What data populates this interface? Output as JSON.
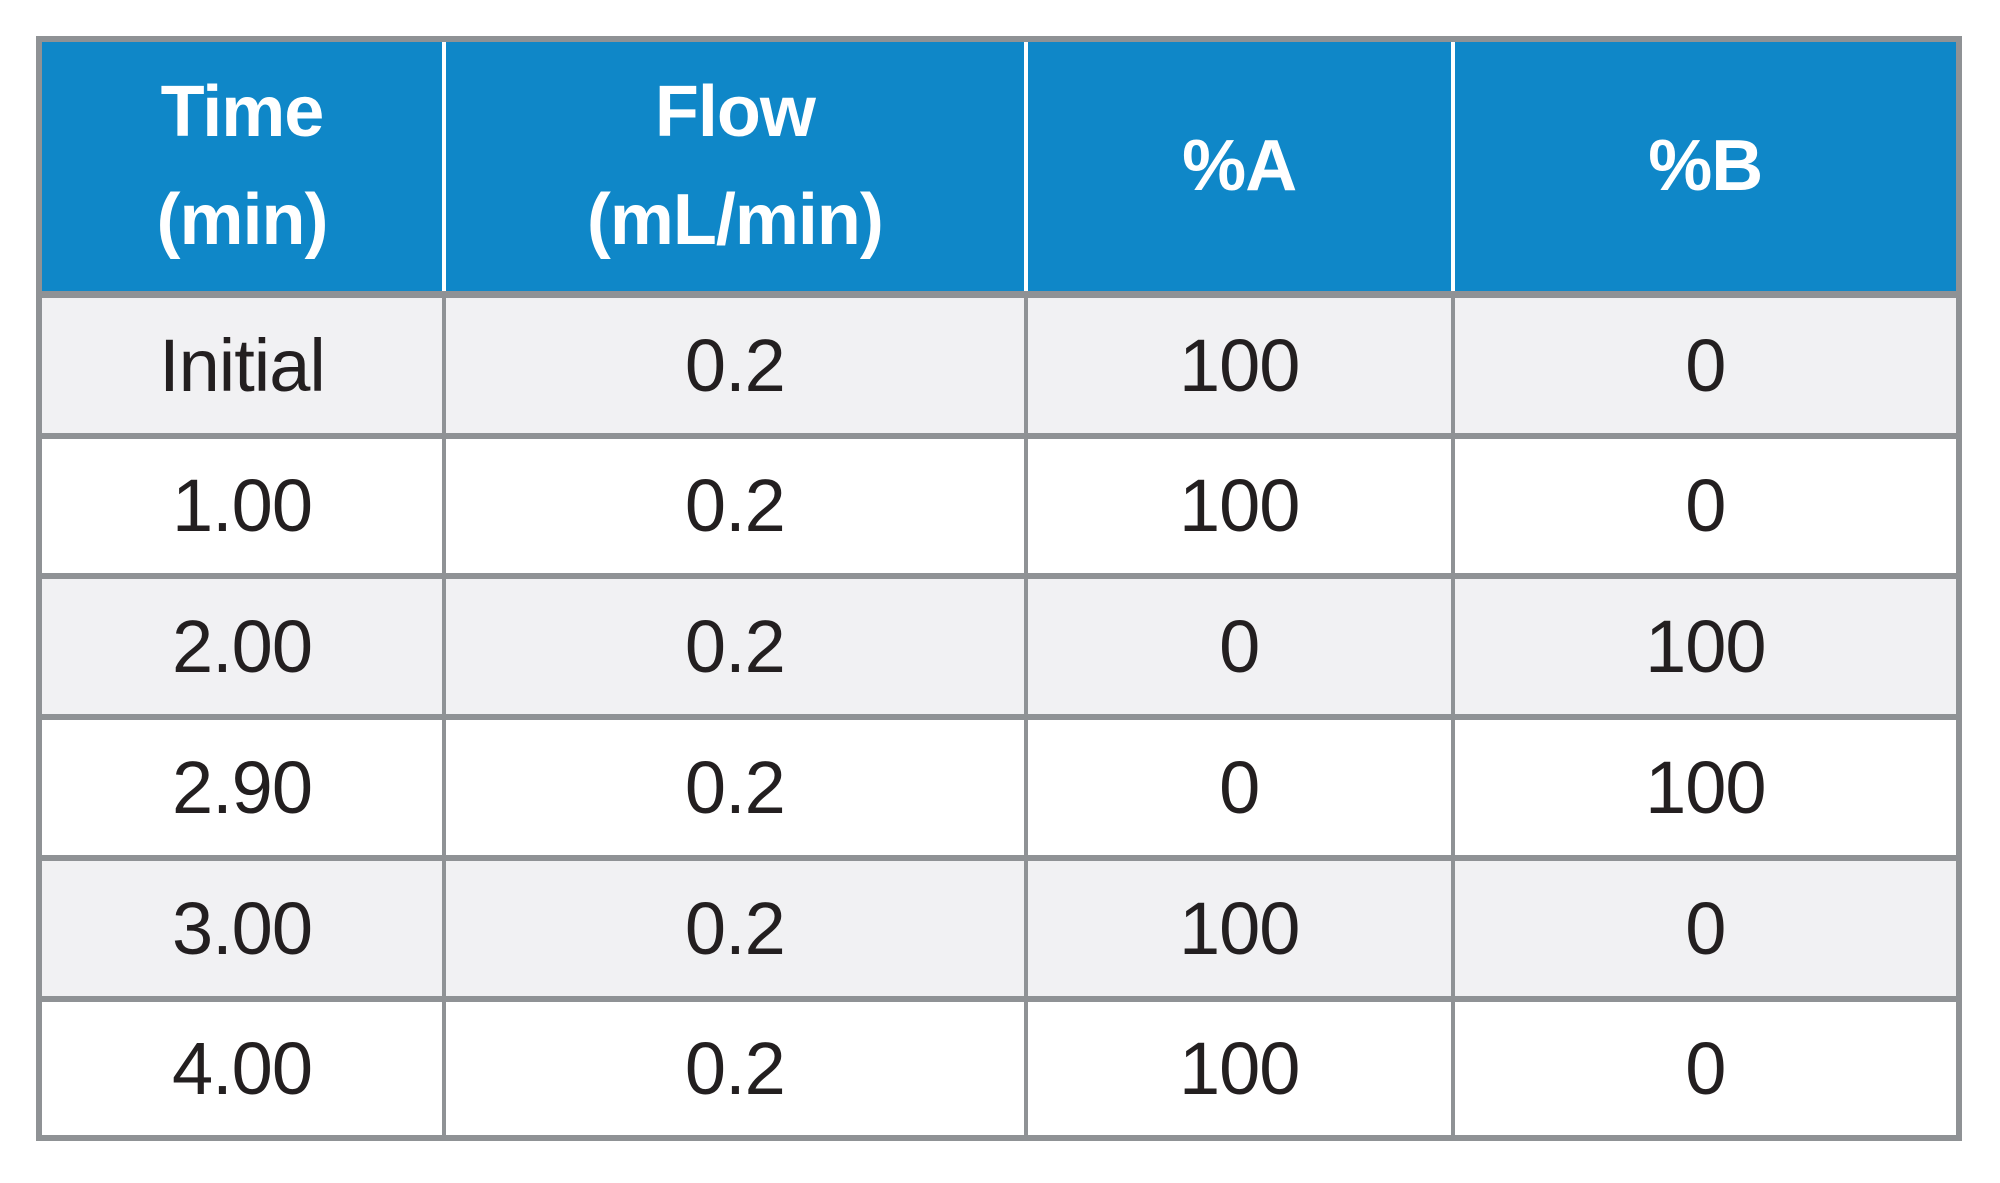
{
  "table": {
    "columns": [
      {
        "label": "Time\n(min)"
      },
      {
        "label": "Flow\n(mL/min)"
      },
      {
        "label": "%A"
      },
      {
        "label": "%B"
      }
    ],
    "rows": [
      [
        "Initial",
        "0.2",
        "100",
        "0"
      ],
      [
        "1.00",
        "0.2",
        "100",
        "0"
      ],
      [
        "2.00",
        "0.2",
        "0",
        "100"
      ],
      [
        "2.90",
        "0.2",
        "0",
        "100"
      ],
      [
        "3.00",
        "0.2",
        "100",
        "0"
      ],
      [
        "4.00",
        "0.2",
        "100",
        "0"
      ]
    ],
    "colors": {
      "header_bg": "#0f87c8",
      "header_text": "#ffffff",
      "border": "#8f9295",
      "row_alt_bg": "#f1f1f3",
      "row_bg": "#ffffff",
      "body_text": "#231f20",
      "page_bg": "#ffffff"
    }
  },
  "chart_data": {
    "type": "table",
    "title": "",
    "columns": [
      "Time (min)",
      "Flow (mL/min)",
      "%A",
      "%B"
    ],
    "rows": [
      [
        "Initial",
        0.2,
        100,
        0
      ],
      [
        1.0,
        0.2,
        100,
        0
      ],
      [
        2.0,
        0.2,
        0,
        100
      ],
      [
        2.9,
        0.2,
        0,
        100
      ],
      [
        3.0,
        0.2,
        100,
        0
      ],
      [
        4.0,
        0.2,
        100,
        0
      ]
    ]
  }
}
